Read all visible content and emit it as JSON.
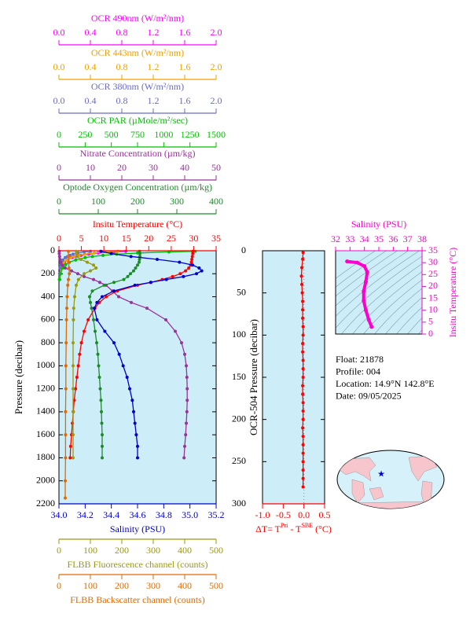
{
  "chart_data": [
    {
      "type": "profile",
      "ylabel": "Pressure (decibar)",
      "ylim": [
        0,
        2200
      ],
      "y_inverted": true,
      "yticks": [
        0,
        200,
        400,
        600,
        800,
        1000,
        1200,
        1400,
        1600,
        1800,
        2000,
        2200
      ],
      "background": "#cdeef8",
      "top_axes": [
        {
          "label": "OCR 490nm (W/m²/nm)",
          "color": "#ff00ff",
          "xlim": [
            0,
            2
          ],
          "xticks": [
            {
              "value": 0,
              "label": "0.0"
            },
            0.4,
            0.8,
            1.2,
            1.6,
            {
              "value": 2,
              "label": "2.0"
            }
          ],
          "pressure": [
            5,
            10,
            20,
            30,
            40,
            50,
            60,
            80,
            100,
            120,
            150,
            200,
            250
          ],
          "values": [
            0.85,
            0.7,
            0.5,
            0.38,
            0.28,
            0.22,
            0.17,
            0.11,
            0.07,
            0.05,
            0.03,
            0.02,
            0.01
          ]
        },
        {
          "label": "OCR 443nm (W/m²/nm)",
          "color": "#f0a000",
          "xlim": [
            0,
            2
          ],
          "xticks": [
            {
              "value": 0,
              "label": "0.0"
            },
            0.4,
            0.8,
            1.2,
            1.6,
            {
              "value": 2,
              "label": "2.0"
            }
          ],
          "pressure": [
            5,
            10,
            20,
            30,
            40,
            50,
            60,
            80,
            100,
            120,
            150,
            200,
            250
          ],
          "values": [
            0.75,
            0.6,
            0.45,
            0.33,
            0.25,
            0.19,
            0.15,
            0.1,
            0.06,
            0.04,
            0.025,
            0.015,
            0.01
          ]
        },
        {
          "label": "OCR 380nm (W/m²/nm)",
          "color": "#6a6ac8",
          "xlim": [
            0,
            2
          ],
          "xticks": [
            {
              "value": 0,
              "label": "0.0"
            },
            0.4,
            0.8,
            1.2,
            1.6,
            {
              "value": 2,
              "label": "2.0"
            }
          ],
          "pressure": [
            5,
            10,
            20,
            30,
            40,
            50,
            60,
            80,
            100,
            120,
            150,
            200,
            250
          ],
          "values": [
            0.4,
            0.32,
            0.24,
            0.18,
            0.14,
            0.11,
            0.08,
            0.05,
            0.03,
            0.02,
            0.012,
            0.008,
            0.005
          ]
        },
        {
          "label": "OCR PAR (µMole/m²/sec)",
          "color": "#00c000",
          "xlim": [
            0,
            1500
          ],
          "xticks": [
            0,
            250,
            500,
            750,
            1000,
            1250,
            1500
          ],
          "pressure": [
            5,
            10,
            20,
            30,
            40,
            50,
            60,
            80,
            100,
            120,
            150,
            200,
            250
          ],
          "values": [
            1300,
            1050,
            750,
            550,
            420,
            320,
            250,
            160,
            100,
            65,
            35,
            15,
            6
          ]
        },
        {
          "label": "Nitrate Concentration (µm/kg)",
          "color": "#993399",
          "xlim": [
            0,
            50
          ],
          "xticks": [
            0,
            10,
            20,
            30,
            40,
            50
          ],
          "pressure": [
            5,
            25,
            50,
            75,
            100,
            125,
            150,
            175,
            200,
            225,
            250,
            275,
            300,
            350,
            400,
            450,
            500,
            600,
            700,
            800,
            900,
            1000,
            1100,
            1200,
            1300,
            1400,
            1500,
            1600,
            1700,
            1800
          ],
          "values": [
            0.1,
            0.1,
            0.2,
            0.3,
            0.5,
            1,
            2,
            4,
            6,
            8,
            11,
            13,
            15,
            17,
            19,
            23,
            28,
            34,
            37,
            39,
            40,
            40.5,
            40.7,
            40.8,
            40.8,
            40.7,
            40.5,
            40.3,
            40,
            39.8
          ]
        },
        {
          "label": "Optode Oxygen Concentration (µm/kg)",
          "color": "#1e8b2a",
          "xlim": [
            0,
            400
          ],
          "xticks": [
            0,
            100,
            200,
            300,
            400
          ],
          "pressure": [
            5,
            25,
            50,
            75,
            100,
            125,
            150,
            175,
            200,
            225,
            250,
            275,
            300,
            350,
            400,
            450,
            500,
            600,
            700,
            800,
            900,
            1000,
            1100,
            1200,
            1300,
            1400,
            1500,
            1600,
            1700,
            1800
          ],
          "values": [
            205,
            206,
            206,
            205,
            204,
            200,
            195,
            190,
            182,
            175,
            165,
            140,
            115,
            85,
            78,
            80,
            83,
            88,
            92,
            96,
            99,
            101,
            103,
            105,
            107,
            108,
            109,
            110,
            110,
            110
          ]
        },
        {
          "label": "Insitu Temperature (°C)",
          "color": "#ff0000",
          "xlim": [
            0,
            35
          ],
          "xticks": [
            0,
            5,
            10,
            15,
            20,
            25,
            30,
            35
          ],
          "pressure": [
            5,
            25,
            50,
            75,
            100,
            125,
            150,
            175,
            200,
            225,
            250,
            275,
            300,
            350,
            400,
            450,
            500,
            600,
            700,
            800,
            900,
            1000,
            1100,
            1200,
            1300,
            1400,
            1500,
            1600,
            1700,
            1800
          ],
          "values": [
            29.8,
            29.8,
            29.7,
            29.6,
            29.5,
            29.3,
            28.9,
            28.2,
            27.0,
            25.3,
            23.0,
            20.5,
            17.5,
            13.0,
            10.5,
            9.0,
            8.0,
            6.5,
            5.6,
            5.0,
            4.6,
            4.3,
            4.0,
            3.7,
            3.4,
            3.2,
            3.0,
            2.8,
            2.6,
            2.5
          ]
        }
      ],
      "bottom_axes": [
        {
          "label": "Salinity (PSU)",
          "color": "#0000cc",
          "xlim": [
            34,
            35.2
          ],
          "xticks": [
            {
              "value": 34,
              "label": "34.0"
            },
            34.2,
            34.4,
            34.6,
            34.8,
            {
              "value": 35,
              "label": "35.0"
            },
            35.2
          ],
          "pressure": [
            5,
            25,
            50,
            75,
            100,
            125,
            150,
            175,
            200,
            225,
            250,
            275,
            300,
            350,
            400,
            450,
            500,
            600,
            700,
            800,
            900,
            1000,
            1100,
            1200,
            1300,
            1400,
            1500,
            1600,
            1700,
            1800
          ],
          "values": [
            34.32,
            34.4,
            34.55,
            34.75,
            34.92,
            35.02,
            35.07,
            35.09,
            35.05,
            34.95,
            34.82,
            34.7,
            34.58,
            34.42,
            34.33,
            34.29,
            34.27,
            34.29,
            34.35,
            34.42,
            34.46,
            34.49,
            34.52,
            34.54,
            34.56,
            34.57,
            34.58,
            34.59,
            34.6,
            34.6
          ]
        },
        {
          "label": "FLBB Fluorescence channel (counts)",
          "color": "#9a9a10",
          "xlim": [
            0,
            500
          ],
          "xticks": [
            0,
            100,
            200,
            300,
            400,
            500
          ],
          "pressure": [
            5,
            25,
            50,
            75,
            100,
            125,
            150,
            175,
            200,
            250,
            300,
            400,
            500,
            600,
            800,
            1000,
            1200,
            1400,
            1600,
            1800
          ],
          "values": [
            55,
            56,
            58,
            70,
            90,
            110,
            118,
            100,
            80,
            62,
            55,
            50,
            47,
            46,
            45,
            45,
            45,
            45,
            45,
            45
          ]
        },
        {
          "label": "FLBB Backscatter channel (counts)",
          "color": "#e06a00",
          "xlim": [
            0,
            500
          ],
          "xticks": [
            0,
            100,
            200,
            300,
            400,
            500
          ],
          "pressure": [
            5,
            50,
            100,
            150,
            200,
            250,
            300,
            400,
            500,
            600,
            800,
            1000,
            1200,
            1400,
            1600,
            1800,
            2000,
            2150
          ],
          "values": [
            30,
            30,
            31,
            32,
            33,
            30,
            28,
            26,
            25,
            24,
            23,
            22,
            22,
            21,
            21,
            21,
            20,
            20
          ]
        }
      ]
    },
    {
      "type": "profile",
      "ylabel": "OCR-504 Pressure (decibar)",
      "ylim": [
        0,
        300
      ],
      "y_inverted": true,
      "yticks": [
        0,
        50,
        100,
        150,
        200,
        250,
        300
      ],
      "background": "#cdeef8",
      "zero_line": true,
      "top_axes": [],
      "bottom_axes": [
        {
          "label_parts": [
            "ΔT= T",
            "Pri",
            " - T",
            "SBE",
            " (°C)"
          ],
          "color": "#ff0000",
          "xlim": [
            -1,
            0.5
          ],
          "xticks": [
            {
              "value": -1,
              "label": "-1.0"
            },
            -0.5,
            {
              "value": 0,
              "label": "0.0"
            },
            0.5
          ],
          "pressure": [
            2,
            10,
            20,
            30,
            40,
            50,
            60,
            70,
            80,
            90,
            100,
            110,
            120,
            130,
            140,
            150,
            160,
            170,
            180,
            190,
            200,
            210,
            220,
            230,
            240,
            250,
            260,
            270,
            280
          ],
          "values": [
            -0.02,
            -0.03,
            -0.05,
            -0.06,
            -0.05,
            -0.04,
            -0.03,
            -0.03,
            -0.03,
            -0.02,
            -0.02,
            -0.03,
            -0.03,
            -0.02,
            -0.02,
            -0.02,
            -0.03,
            -0.03,
            -0.02,
            -0.02,
            -0.02,
            -0.03,
            -0.02,
            -0.02,
            -0.02,
            -0.02,
            -0.02,
            -0.02,
            -0.02
          ]
        }
      ]
    },
    {
      "type": "ts",
      "xlabel": "Salinity (PSU)",
      "ylabel": "Insitu Temperature (°C)",
      "color": "#ff00cc",
      "xlim": [
        32,
        38
      ],
      "xticks": [
        32,
        33,
        34,
        35,
        36,
        37,
        38
      ],
      "ylim": [
        0,
        35
      ],
      "yticks": [
        0,
        5,
        10,
        15,
        20,
        25,
        30,
        35
      ],
      "x": [
        32.8,
        33.5,
        34.0,
        34.2,
        34.1,
        33.95,
        33.95,
        34.1,
        34.3,
        34.5
      ],
      "values": [
        30.5,
        30,
        28.5,
        26,
        22,
        18,
        14,
        10,
        6,
        3
      ]
    }
  ],
  "info": [
    "Float:  21878",
    "Profile:  004",
    "Location:  14.9°N  142.8°E",
    "Date:  09/05/2025"
  ]
}
